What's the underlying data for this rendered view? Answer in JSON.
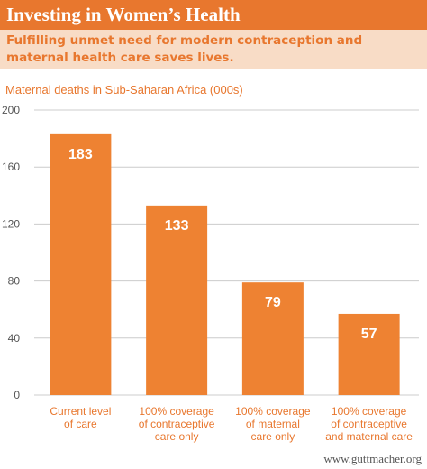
{
  "header": {
    "title": "Investing in Women’s Health",
    "subtitle": "Fulfilling unmet need for modern contraception and maternal health care saves lives."
  },
  "footer": {
    "source": "www.guttmacher.org"
  },
  "colors": {
    "accent": "#e8772e",
    "subtitle_bg": "#f8dcc6",
    "bar": "#ee8232",
    "grid": "#cccccc",
    "axis_text": "#555555"
  },
  "chart_data": {
    "type": "bar",
    "title": "Maternal deaths in Sub-Saharan Africa (000s)",
    "categories": [
      [
        "Current level",
        "of care"
      ],
      [
        "100% coverage",
        "of contraceptive",
        "care only"
      ],
      [
        "100% coverage",
        "of maternal",
        "care only"
      ],
      [
        "100% coverage",
        "of contraceptive",
        "and maternal care"
      ]
    ],
    "values": [
      183,
      133,
      79,
      57
    ],
    "ylim": [
      0,
      200
    ],
    "yticks": [
      0,
      40,
      80,
      120,
      160,
      200
    ],
    "grid": true,
    "data_labels": true
  }
}
